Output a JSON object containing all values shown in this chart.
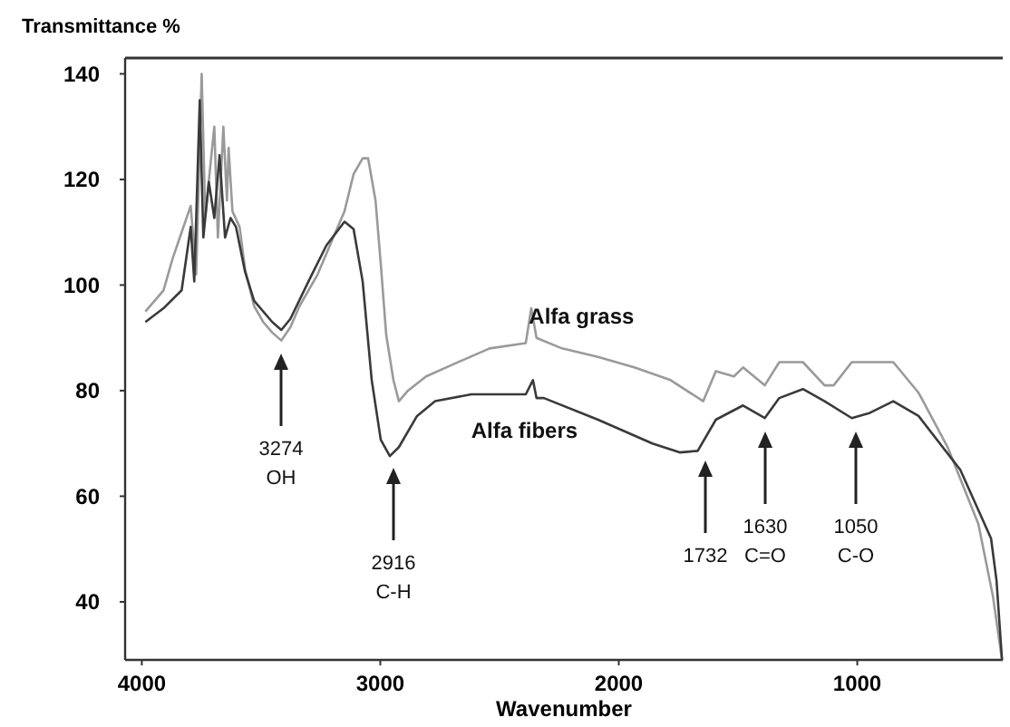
{
  "chart_data": {
    "type": "line",
    "xlabel": "Wavenumber",
    "ylabel": "Transmittance %",
    "xlim": [
      4070,
      390
    ],
    "ylim": [
      29,
      143
    ],
    "xticks": [
      4000,
      3000,
      2000,
      1000
    ],
    "yticks": [
      40,
      60,
      80,
      100,
      120,
      140
    ],
    "grid": false,
    "marker": "none",
    "line_style": "solid",
    "series": [
      {
        "name": "Alfa grass",
        "color": "#9a9a9a",
        "x": [
          3985,
          3909,
          3871,
          3833,
          3795,
          3772,
          3749,
          3734,
          3696,
          3681,
          3658,
          3643,
          3636,
          3620,
          3590,
          3567,
          3529,
          3491,
          3453,
          3415,
          3377,
          3339,
          3263,
          3188,
          3150,
          3112,
          3074,
          3051,
          3020,
          2998,
          2975,
          2945,
          2922,
          2884,
          2808,
          2694,
          2542,
          2390,
          2367,
          2345,
          2238,
          2087,
          1935,
          1783,
          1646,
          1593,
          1517,
          1479,
          1388,
          1327,
          1228,
          1137,
          1099,
          1023,
          947,
          849,
          743,
          621,
          492,
          431,
          393
        ],
        "values": [
          95,
          99,
          105,
          110,
          115,
          102,
          140,
          113,
          130,
          109,
          130,
          116,
          126,
          114,
          111,
          103,
          96,
          93,
          91,
          89.5,
          92,
          96,
          102,
          110,
          114,
          121,
          124,
          124,
          116,
          104,
          90.5,
          82,
          78,
          80,
          82.7,
          85,
          88,
          89,
          95.6,
          90,
          88,
          86.4,
          84.4,
          82,
          78,
          83.7,
          82.7,
          84.4,
          81,
          85.4,
          85.4,
          81,
          81,
          85.4,
          85.4,
          85.4,
          79.6,
          69.3,
          54.7,
          41,
          29
        ]
      },
      {
        "name": "Alfa fibers",
        "color": "#3a3a3a",
        "x": [
          3985,
          3909,
          3833,
          3795,
          3780,
          3757,
          3742,
          3719,
          3696,
          3674,
          3651,
          3628,
          3605,
          3567,
          3529,
          3453,
          3415,
          3377,
          3301,
          3226,
          3150,
          3112,
          3074,
          3036,
          2998,
          2960,
          2922,
          2846,
          2770,
          2618,
          2390,
          2360,
          2345,
          2314,
          2087,
          1859,
          1745,
          1669,
          1593,
          1479,
          1388,
          1327,
          1228,
          1137,
          1023,
          947,
          849,
          743,
          568,
          439,
          416,
          393
        ],
        "values": [
          93,
          95.6,
          99,
          111,
          100.7,
          135,
          109,
          119.5,
          112.7,
          124.6,
          109,
          112.7,
          111,
          102.5,
          97,
          93,
          91.5,
          93.6,
          100.7,
          107.5,
          112,
          110.6,
          100.7,
          82,
          70.7,
          67.6,
          69.3,
          75.2,
          78,
          79.3,
          79.3,
          82,
          78.6,
          78.6,
          74.5,
          70,
          68.3,
          68.6,
          74.5,
          77.2,
          74.8,
          78.6,
          80.3,
          78,
          74.8,
          75.8,
          78,
          75.2,
          65,
          52,
          44,
          29
        ]
      }
    ],
    "annotations": [
      "3274\nOH",
      "2916\nC-H",
      "1732",
      "1630\nC=O",
      "1050\nC-O"
    ]
  }
}
